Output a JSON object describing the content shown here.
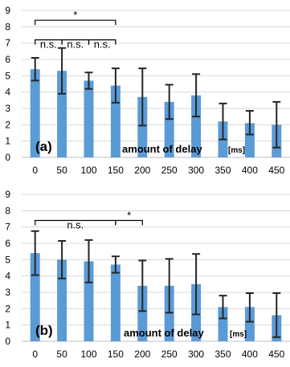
{
  "chart_data": [
    {
      "type": "bar",
      "panel_label": "(a)",
      "xlabel": "amount of delay",
      "xunit": "[ms]",
      "ylim": [
        0,
        9
      ],
      "yticks": [
        0,
        1,
        2,
        3,
        4,
        5,
        6,
        7,
        8,
        9
      ],
      "grid": true,
      "color": "#5b9bd5",
      "categories": [
        "0",
        "50",
        "100",
        "150",
        "200",
        "250",
        "300",
        "350",
        "400",
        "450"
      ],
      "values": [
        5.4,
        5.3,
        4.7,
        4.4,
        3.7,
        3.4,
        3.8,
        2.2,
        2.1,
        2.0
      ],
      "error_low": [
        4.7,
        3.9,
        4.2,
        3.35,
        1.95,
        2.35,
        2.5,
        1.1,
        1.4,
        0.6
      ],
      "error_high": [
        6.1,
        6.7,
        5.2,
        5.45,
        5.45,
        4.45,
        5.1,
        3.3,
        2.85,
        3.4
      ],
      "annotations": [
        {
          "text": "*",
          "from": "0",
          "to": "150",
          "level": 8.4
        },
        {
          "text": "n.s.",
          "from": "0",
          "to": "50",
          "level": 7.2
        },
        {
          "text": "n.s.",
          "from": "50",
          "to": "100",
          "level": 7.2
        },
        {
          "text": "n.s.",
          "from": "100",
          "to": "150",
          "level": 7.2
        }
      ]
    },
    {
      "type": "bar",
      "panel_label": "(b)",
      "xlabel": "amount of delay",
      "xunit": "[ms]",
      "ylim": [
        0,
        9
      ],
      "yticks": [
        0,
        1,
        2,
        3,
        4,
        5,
        6,
        7,
        8,
        9
      ],
      "grid": true,
      "color": "#5b9bd5",
      "categories": [
        "0",
        "50",
        "100",
        "150",
        "200",
        "250",
        "300",
        "350",
        "400",
        "450"
      ],
      "values": [
        5.4,
        5.0,
        4.9,
        4.7,
        3.4,
        3.4,
        3.5,
        2.1,
        2.1,
        1.6
      ],
      "error_low": [
        4.05,
        3.85,
        3.6,
        4.2,
        1.85,
        1.75,
        1.65,
        1.4,
        1.2,
        0.25
      ],
      "error_high": [
        6.75,
        6.15,
        6.2,
        5.2,
        4.95,
        5.05,
        5.35,
        2.8,
        2.95,
        2.95
      ],
      "annotations": [
        {
          "text": "n.s.",
          "from": "0",
          "to": "150",
          "level": 7.4
        },
        {
          "text": "*",
          "from": "150",
          "to": "200",
          "level": 7.4
        }
      ]
    }
  ]
}
